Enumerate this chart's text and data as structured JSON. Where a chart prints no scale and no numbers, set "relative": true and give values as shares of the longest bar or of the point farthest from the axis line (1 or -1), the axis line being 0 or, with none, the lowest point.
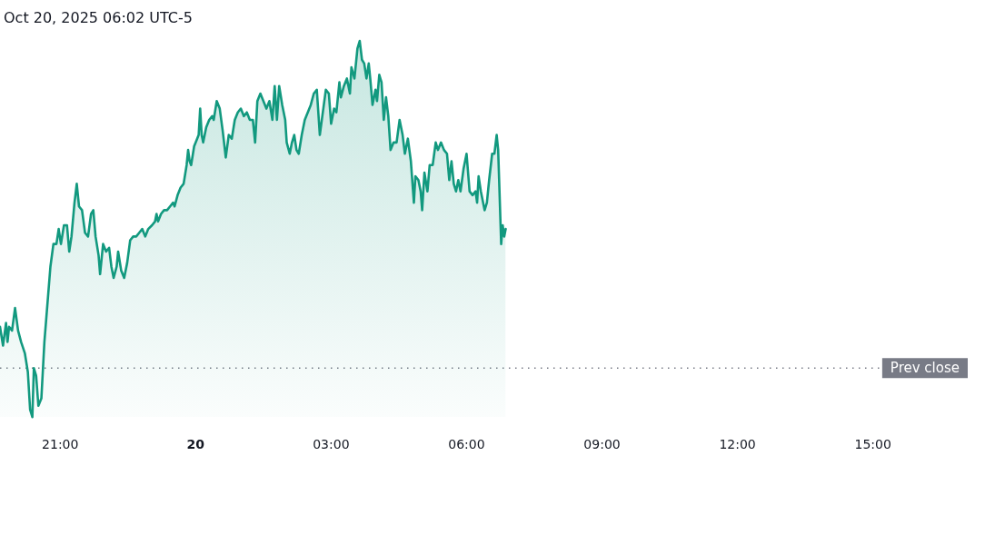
{
  "chart_data": {
    "type": "area",
    "title": "Oct 20, 2025 06:02 UTC-5",
    "relative": true,
    "color": "#12997f",
    "x": [
      "2025-10-19T19:40",
      "2025-10-19T19:44",
      "2025-10-19T19:48",
      "2025-10-19T19:50",
      "2025-10-19T19:52",
      "2025-10-19T19:56",
      "2025-10-19T20:00",
      "2025-10-19T20:04",
      "2025-10-19T20:08",
      "2025-10-19T20:13",
      "2025-10-19T20:17",
      "2025-10-19T20:20",
      "2025-10-19T20:23",
      "2025-10-19T20:25",
      "2025-10-19T20:28",
      "2025-10-19T20:31",
      "2025-10-19T20:35",
      "2025-10-19T20:39",
      "2025-10-19T20:43",
      "2025-10-19T20:47",
      "2025-10-19T20:51",
      "2025-10-19T20:55",
      "2025-10-19T20:58",
      "2025-10-19T21:01",
      "2025-10-19T21:05",
      "2025-10-19T21:09",
      "2025-10-19T21:12",
      "2025-10-19T21:15",
      "2025-10-19T21:19",
      "2025-10-19T21:22",
      "2025-10-19T21:25",
      "2025-10-19T21:29",
      "2025-10-19T21:33",
      "2025-10-19T21:37",
      "2025-10-19T21:41",
      "2025-10-19T21:44",
      "2025-10-19T21:47",
      "2025-10-19T21:51",
      "2025-10-19T21:53",
      "2025-10-19T21:57",
      "2025-10-19T22:01",
      "2025-10-19T22:05",
      "2025-10-19T22:08",
      "2025-10-19T22:11",
      "2025-10-19T22:15",
      "2025-10-19T22:17",
      "2025-10-19T22:21",
      "2025-10-19T22:25",
      "2025-10-19T22:29",
      "2025-10-19T22:33",
      "2025-10-19T22:37",
      "2025-10-19T22:41",
      "2025-10-19T22:45",
      "2025-10-19T22:49",
      "2025-10-19T22:53",
      "2025-10-19T22:57",
      "2025-10-19T23:02",
      "2025-10-19T23:06",
      "2025-10-19T23:08",
      "2025-10-19T23:10",
      "2025-10-19T23:14",
      "2025-10-19T23:18",
      "2025-10-19T23:22",
      "2025-10-19T23:26",
      "2025-10-19T23:30",
      "2025-10-19T23:32",
      "2025-10-19T23:36",
      "2025-10-19T23:40",
      "2025-10-19T23:44",
      "2025-10-19T23:48",
      "2025-10-19T23:50",
      "2025-10-19T23:52",
      "2025-10-19T23:54",
      "2025-10-19T23:58",
      "2025-10-20T00:02",
      "2025-10-20T00:04",
      "2025-10-20T00:06",
      "2025-10-20T00:08",
      "2025-10-20T00:10",
      "2025-10-20T00:14",
      "2025-10-20T00:18",
      "2025-10-20T00:22",
      "2025-10-20T00:24",
      "2025-10-20T00:28",
      "2025-10-20T00:32",
      "2025-10-20T00:36",
      "2025-10-20T00:40",
      "2025-10-20T00:44",
      "2025-10-20T00:48",
      "2025-10-20T00:52",
      "2025-10-20T00:56",
      "2025-10-20T01:00",
      "2025-10-20T01:04",
      "2025-10-20T01:08",
      "2025-10-20T01:12",
      "2025-10-20T01:16",
      "2025-10-20T01:19",
      "2025-10-20T01:22",
      "2025-10-20T01:26",
      "2025-10-20T01:30",
      "2025-10-20T01:34",
      "2025-10-20T01:38",
      "2025-10-20T01:42",
      "2025-10-20T01:45",
      "2025-10-20T01:48",
      "2025-10-20T01:51",
      "2025-10-20T01:55",
      "2025-10-20T01:59",
      "2025-10-20T02:01",
      "2025-10-20T02:05",
      "2025-10-20T02:08",
      "2025-10-20T02:11",
      "2025-10-20T02:14",
      "2025-10-20T02:17",
      "2025-10-20T02:21",
      "2025-10-20T02:25",
      "2025-10-20T02:29",
      "2025-10-20T02:33",
      "2025-10-20T02:37",
      "2025-10-20T02:41",
      "2025-10-20T02:45",
      "2025-10-20T02:49",
      "2025-10-20T02:53",
      "2025-10-20T02:57",
      "2025-10-20T03:00",
      "2025-10-20T03:04",
      "2025-10-20T03:07",
      "2025-10-20T03:11",
      "2025-10-20T03:13",
      "2025-10-20T03:17",
      "2025-10-20T03:21",
      "2025-10-20T03:25",
      "2025-10-20T03:27",
      "2025-10-20T03:31",
      "2025-10-20T03:35",
      "2025-10-20T03:38",
      "2025-10-20T03:41",
      "2025-10-20T03:44",
      "2025-10-20T03:47",
      "2025-10-20T03:50",
      "2025-10-20T03:52",
      "2025-10-20T03:55",
      "2025-10-20T03:59",
      "2025-10-20T04:01",
      "2025-10-20T04:04",
      "2025-10-20T04:07",
      "2025-10-20T04:10",
      "2025-10-20T04:13",
      "2025-10-20T04:16",
      "2025-10-20T04:19",
      "2025-10-20T04:23",
      "2025-10-20T04:27",
      "2025-10-20T04:31",
      "2025-10-20T04:35",
      "2025-10-20T04:38",
      "2025-10-20T04:42",
      "2025-10-20T04:46",
      "2025-10-20T04:50",
      "2025-10-20T04:52",
      "2025-10-20T04:56",
      "2025-10-20T04:59",
      "2025-10-20T05:01",
      "2025-10-20T05:04",
      "2025-10-20T05:08",
      "2025-10-20T05:11",
      "2025-10-20T05:15",
      "2025-10-20T05:19",
      "2025-10-20T05:22",
      "2025-10-20T05:26",
      "2025-10-20T05:30",
      "2025-10-20T05:34",
      "2025-10-20T05:37",
      "2025-10-20T05:40",
      "2025-10-20T05:43",
      "2025-10-20T05:46",
      "2025-10-20T05:49",
      "2025-10-20T05:52",
      "2025-10-20T05:56",
      "2025-10-20T06:00",
      "2025-10-20T06:04",
      "2025-10-20T06:08",
      "2025-10-20T06:12",
      "2025-10-20T06:14",
      "2025-10-20T06:16",
      "2025-10-20T06:19",
      "2025-10-20T06:24",
      "2025-10-20T06:27",
      "2025-10-20T06:30",
      "2025-10-20T06:34",
      "2025-10-20T06:37",
      "2025-10-20T06:40",
      "2025-10-20T06:42",
      "2025-10-20T06:46",
      "2025-10-20T06:48",
      "2025-10-20T06:50",
      "2025-10-20T06:52"
    ],
    "values": [
      0.24,
      0.19,
      0.25,
      0.2,
      0.24,
      0.23,
      0.29,
      0.23,
      0.2,
      0.17,
      0.12,
      0.02,
      0,
      0.13,
      0.11,
      0.03,
      0.05,
      0.2,
      0.3,
      0.4,
      0.46,
      0.46,
      0.5,
      0.46,
      0.51,
      0.51,
      0.44,
      0.48,
      0.57,
      0.62,
      0.56,
      0.55,
      0.49,
      0.48,
      0.54,
      0.55,
      0.48,
      0.43,
      0.38,
      0.46,
      0.44,
      0.45,
      0.4,
      0.37,
      0.4,
      0.44,
      0.39,
      0.37,
      0.41,
      0.47,
      0.48,
      0.48,
      0.49,
      0.5,
      0.48,
      0.5,
      0.51,
      0.52,
      0.54,
      0.52,
      0.54,
      0.55,
      0.55,
      0.56,
      0.57,
      0.56,
      0.59,
      0.61,
      0.62,
      0.67,
      0.71,
      0.68,
      0.67,
      0.72,
      0.74,
      0.75,
      0.82,
      0.75,
      0.73,
      0.77,
      0.79,
      0.8,
      0.79,
      0.84,
      0.82,
      0.76,
      0.69,
      0.75,
      0.74,
      0.79,
      0.81,
      0.82,
      0.8,
      0.81,
      0.79,
      0.79,
      0.73,
      0.84,
      0.86,
      0.84,
      0.82,
      0.84,
      0.79,
      0.88,
      0.79,
      0.88,
      0.83,
      0.79,
      0.73,
      0.7,
      0.73,
      0.75,
      0.71,
      0.7,
      0.75,
      0.79,
      0.81,
      0.83,
      0.86,
      0.87,
      0.75,
      0.81,
      0.87,
      0.86,
      0.78,
      0.82,
      0.81,
      0.89,
      0.85,
      0.88,
      0.9,
      0.86,
      0.93,
      0.9,
      0.98,
      1,
      0.95,
      0.94,
      0.9,
      0.94,
      0.9,
      0.83,
      0.87,
      0.84,
      0.91,
      0.89,
      0.79,
      0.85,
      0.8,
      0.71,
      0.73,
      0.73,
      0.79,
      0.75,
      0.7,
      0.74,
      0.68,
      0.57,
      0.64,
      0.63,
      0.6,
      0.55,
      0.65,
      0.6,
      0.67,
      0.67,
      0.73,
      0.71,
      0.73,
      0.71,
      0.7,
      0.63,
      0.68,
      0.62,
      0.6,
      0.63,
      0.6,
      0.66,
      0.7,
      0.6,
      0.59,
      0.6,
      0.57,
      0.64,
      0.6,
      0.55,
      0.57,
      0.63,
      0.7,
      0.7,
      0.75,
      0.71,
      0.46,
      0.51,
      0.48,
      0.5
    ],
    "xlim": [
      "2025-10-19T19:40",
      "2025-10-20T17:06"
    ],
    "xticks": [
      {
        "value": "2025-10-19T21:00",
        "label": "21:00"
      },
      {
        "value": "2025-10-20T00:00",
        "label": "20"
      },
      {
        "value": "2025-10-20T03:00",
        "label": "03:00"
      },
      {
        "value": "2025-10-20T06:00",
        "label": "06:00"
      },
      {
        "value": "2025-10-20T09:00",
        "label": "09:00"
      },
      {
        "value": "2025-10-20T12:00",
        "label": "12:00"
      },
      {
        "value": "2025-10-20T15:00",
        "label": "15:00"
      }
    ],
    "ref_lines": [
      {
        "axis": "y",
        "value": 0.13,
        "label": "Prev close",
        "color": "#787b86",
        "line_style": "dotted"
      }
    ]
  }
}
